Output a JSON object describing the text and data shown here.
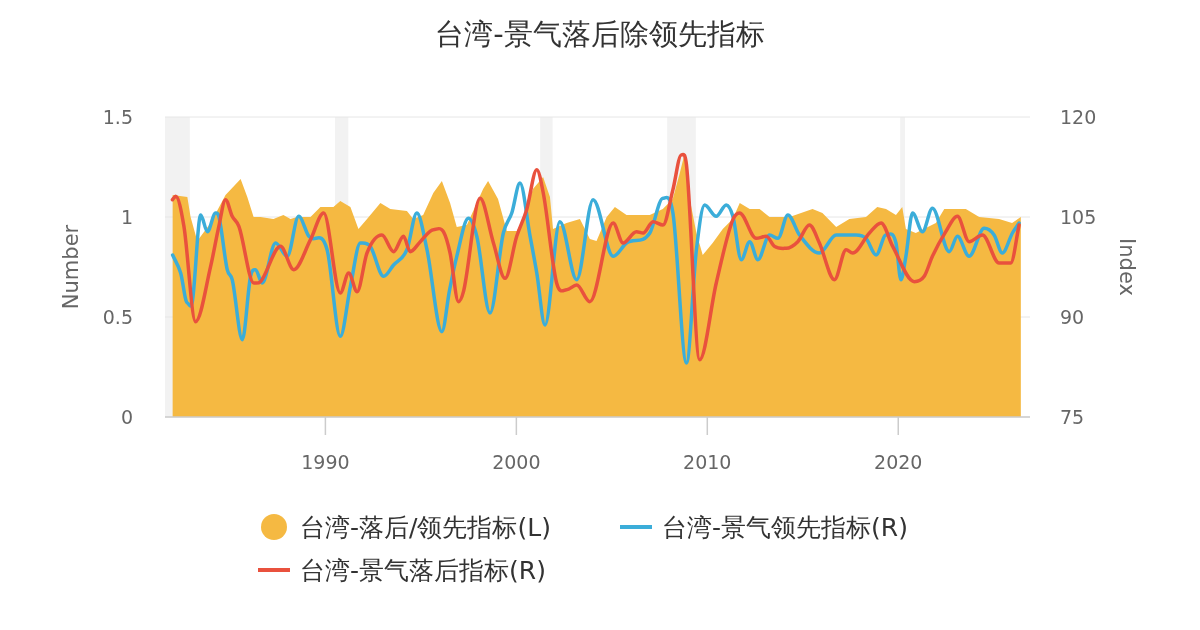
{
  "chart_data": {
    "type": "area",
    "title": "台湾-景气落后除领先指标",
    "ylabel": "Number",
    "y2label": "Index",
    "xlim": [
      1981.6,
      2026.9
    ],
    "xticks": [
      1990,
      2000,
      2010,
      2020
    ],
    "ylim": [
      0,
      1.5
    ],
    "yticks": [
      0,
      0.5,
      1,
      1.5
    ],
    "y2lim": [
      75,
      120
    ],
    "y2ticks": [
      75,
      90,
      105,
      120
    ],
    "grid": "y",
    "legend": "bottom",
    "bands": [
      {
        "axis": "x",
        "from": 1981.6,
        "to": 1982.9,
        "color": "#f2f2f2"
      },
      {
        "axis": "x",
        "from": 1990.5,
        "to": 1991.2,
        "color": "#f2f2f2"
      },
      {
        "axis": "x",
        "from": 2001.25,
        "to": 2001.9,
        "color": "#f2f2f2"
      },
      {
        "axis": "x",
        "from": 2007.9,
        "to": 2009.4,
        "color": "#f2f2f2"
      },
      {
        "axis": "x",
        "from": 2020.1,
        "to": 2020.35,
        "color": "#f2f2f2"
      }
    ],
    "series": [
      {
        "name": "台湾-落后/领先指标(L)",
        "color": "#f5b942",
        "x": [
          1982.0,
          1982.77,
          1982.94,
          1983.29,
          1983.99,
          1984.77,
          1985.56,
          1985.91,
          1986.24,
          1986.6,
          1987.28,
          1987.8,
          1988.17,
          1988.52,
          1989.22,
          1989.74,
          1990.42,
          1990.78,
          1991.31,
          1991.73,
          1992.18,
          1992.88,
          1993.4,
          1994.27,
          1994.6,
          1995.12,
          1995.65,
          1996.1,
          1996.53,
          1996.88,
          1997.41,
          1998.26,
          1998.52,
          1999.04,
          1999.5,
          2000.02,
          2000.35,
          2000.87,
          2001.4,
          2001.76,
          2001.92,
          2002.63,
          2003.33,
          2003.85,
          2004.2,
          2004.73,
          2005.16,
          2005.77,
          2006.29,
          2006.99,
          2007.67,
          2008.19,
          2008.56,
          2008.82,
          2009.08,
          2009.43,
          2009.76,
          2010.28,
          2010.81,
          2011.33,
          2011.7,
          2012.22,
          2012.74,
          2013.26,
          2014.31,
          2015.51,
          2016.03,
          2016.75,
          2017.44,
          2018.31,
          2018.9,
          2019.36,
          2019.88,
          2020.21,
          2020.4,
          2020.92,
          2021.97,
          2022.41,
          2023.54,
          2024.24,
          2025.28,
          2025.96,
          2026.42
        ],
        "values": [
          1.11,
          1.1,
          1.0,
          0.88,
          0.97,
          1.11,
          1.19,
          1.1,
          1.0,
          1.0,
          0.99,
          1.01,
          0.99,
          1.0,
          1.0,
          1.05,
          1.05,
          1.08,
          1.05,
          0.94,
          0.99,
          1.07,
          1.04,
          1.03,
          0.99,
          1.01,
          1.12,
          1.18,
          1.07,
          0.95,
          0.96,
          1.14,
          1.18,
          1.09,
          0.93,
          0.93,
          0.99,
          1.14,
          1.2,
          1.1,
          0.94,
          0.97,
          0.99,
          0.89,
          0.88,
          1.0,
          1.05,
          1.01,
          1.01,
          1.01,
          1.04,
          1.09,
          1.22,
          1.32,
          1.09,
          0.92,
          0.81,
          0.87,
          0.94,
          0.99,
          1.07,
          1.04,
          1.04,
          1.0,
          1.0,
          1.04,
          1.02,
          0.95,
          0.99,
          1.0,
          1.05,
          1.04,
          1.01,
          1.05,
          0.94,
          0.92,
          0.97,
          1.04,
          1.04,
          1.0,
          0.99,
          0.97,
          1.0
        ]
      },
      {
        "name": "台湾-景气领先指标(R)",
        "type": "line",
        "axis": "y2",
        "color": "#3badd9",
        "x": [
          1982.0,
          1982.42,
          1982.77,
          1983.03,
          1983.47,
          1983.82,
          1984.25,
          1984.42,
          1984.86,
          1985.12,
          1985.65,
          1986.08,
          1986.34,
          1986.69,
          1987.39,
          1988.0,
          1988.6,
          1989.13,
          1990.09,
          1990.78,
          1991.31,
          1991.83,
          1992.35,
          1993.05,
          1993.57,
          1994.27,
          1994.79,
          1995.32,
          1996.1,
          1996.5,
          1996.88,
          1997.49,
          1997.93,
          1998.62,
          1999.32,
          1999.76,
          2000.19,
          2000.72,
          2001.07,
          2001.5,
          2002.28,
          2003.16,
          2004.02,
          2005.07,
          2005.77,
          2006.99,
          2007.68,
          2008.2,
          2008.91,
          2009.43,
          2009.86,
          2010.47,
          2010.99,
          2011.34,
          2011.78,
          2012.22,
          2012.65,
          2013.26,
          2013.7,
          2014.22,
          2014.83,
          2015.87,
          2016.75,
          2017.79,
          2018.31,
          2018.84,
          2019.36,
          2019.88,
          2020.14,
          2020.4,
          2020.75,
          2021.27,
          2021.79,
          2022.67,
          2023.1,
          2023.71,
          2024.5,
          2025.02,
          2025.45,
          2025.98,
          2026.33
        ],
        "values": [
          99.3,
          96.6,
          92.1,
          92.3,
          105.3,
          102.8,
          105.6,
          105.1,
          97.1,
          95.6,
          86.6,
          96.1,
          97.1,
          95.1,
          101.1,
          99.1,
          105.1,
          102.1,
          100.1,
          87.1,
          94.6,
          101.1,
          100.6,
          96.1,
          97.8,
          100.1,
          105.6,
          100.1,
          87.8,
          94.0,
          99.1,
          104.8,
          102.1,
          90.6,
          102.6,
          105.6,
          110.1,
          102.1,
          96.6,
          88.8,
          104.3,
          95.6,
          107.6,
          99.1,
          101.1,
          102.6,
          107.8,
          105.6,
          83.1,
          100.1,
          106.8,
          105.1,
          106.8,
          105.1,
          98.6,
          101.3,
          98.6,
          102.3,
          101.8,
          105.3,
          102.3,
          99.6,
          102.3,
          102.3,
          101.8,
          99.3,
          102.3,
          101.1,
          95.6,
          99.1,
          105.6,
          102.8,
          106.3,
          99.8,
          102.1,
          99.1,
          103.3,
          102.3,
          99.6,
          102.6,
          104.1
        ]
      },
      {
        "name": "台湾-景气落后指标(R)",
        "type": "line",
        "axis": "y2",
        "color": "#e9513d",
        "x": [
          1981.99,
          1982.16,
          1982.59,
          1983.2,
          1983.99,
          1984.42,
          1984.77,
          1985.12,
          1985.47,
          1986.25,
          1986.6,
          1987.65,
          1988.34,
          1989.22,
          1989.91,
          1990.78,
          1991.22,
          1991.66,
          1992.18,
          1992.96,
          1993.57,
          1994.09,
          1994.44,
          1994.97,
          1995.66,
          1996.18,
          1996.53,
          1996.97,
          1997.23,
          1998.1,
          1998.8,
          1999.41,
          2000.02,
          2000.54,
          2001.07,
          2001.41,
          2002.11,
          2002.63,
          2003.16,
          2003.85,
          2005.07,
          2005.59,
          2006.29,
          2006.64,
          2007.16,
          2007.68,
          2008.2,
          2008.64,
          2008.91,
          2009.6,
          2010.47,
          2011.34,
          2011.69,
          2012.56,
          2013.09,
          2013.52,
          2014.13,
          2014.74,
          2015.35,
          2015.87,
          2016.66,
          2017.27,
          2017.61,
          2018.49,
          2019.1,
          2019.71,
          2020.84,
          2021.36,
          2021.79,
          2022.49,
          2023.1,
          2023.71,
          2024.41,
          2025.28,
          2025.89,
          2026.33
        ],
        "values": [
          107.6,
          108.1,
          103.6,
          89.3,
          97.6,
          103.6,
          107.6,
          105.1,
          103.6,
          95.1,
          95.3,
          100.6,
          97.1,
          101.6,
          105.6,
          93.6,
          96.6,
          93.8,
          99.6,
          102.3,
          99.8,
          102.1,
          99.8,
          101.3,
          103.1,
          102.8,
          99.6,
          92.3,
          93.8,
          107.8,
          101.1,
          95.8,
          102.1,
          106.1,
          112.1,
          108.6,
          95.1,
          94.1,
          94.8,
          92.3,
          104.1,
          101.1,
          102.8,
          102.6,
          104.3,
          103.8,
          109.1,
          114.3,
          112.8,
          83.6,
          95.1,
          104.6,
          105.6,
          101.8,
          102.1,
          100.6,
          100.3,
          101.3,
          103.8,
          101.1,
          95.6,
          100.1,
          99.6,
          102.6,
          104.1,
          100.6,
          95.3,
          96.1,
          99.1,
          102.8,
          105.1,
          101.3,
          102.3,
          98.1,
          98.1,
          103.8
        ]
      }
    ]
  }
}
